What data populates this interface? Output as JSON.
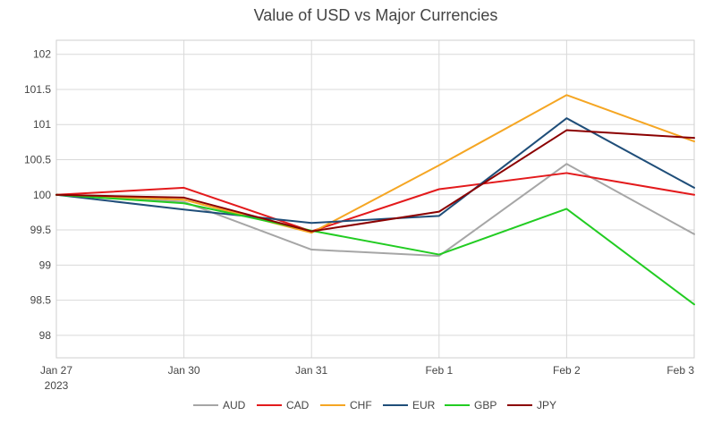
{
  "chart_data": {
    "type": "line",
    "title": "Value of USD vs Major Currencies",
    "xlabel": "",
    "ylabel": "",
    "categories": [
      "Jan 27",
      "Jan 30",
      "Jan 31",
      "Feb 1",
      "Feb 2",
      "Feb 3"
    ],
    "category_sublabels": [
      "2023",
      "",
      "",
      "",
      "",
      ""
    ],
    "ylim": [
      97.68,
      102.2
    ],
    "yticks": [
      "102",
      "101.5",
      "101",
      "100.5",
      "100",
      "99.5",
      "99",
      "98.5",
      "98"
    ],
    "grid": true,
    "legend": "bottom",
    "series": [
      {
        "name": "AUD",
        "color": "#a6a6a6",
        "values": [
          100,
          99.9,
          99.22,
          99.13,
          100.44,
          99.44
        ]
      },
      {
        "name": "CAD",
        "color": "#e31a1c",
        "values": [
          100,
          100.1,
          99.48,
          100.08,
          100.31,
          100.0
        ]
      },
      {
        "name": "CHF",
        "color": "#f5a623",
        "values": [
          100,
          99.93,
          99.46,
          100.42,
          101.42,
          100.76
        ]
      },
      {
        "name": "EUR",
        "color": "#1f4e79",
        "values": [
          100,
          99.79,
          99.6,
          99.7,
          101.09,
          100.1
        ]
      },
      {
        "name": "GBP",
        "color": "#22cc22",
        "values": [
          100,
          99.88,
          99.49,
          99.15,
          99.8,
          98.44
        ]
      },
      {
        "name": "JPY",
        "color": "#8b0000",
        "values": [
          100,
          99.96,
          99.48,
          99.76,
          100.92,
          100.81
        ]
      }
    ]
  }
}
